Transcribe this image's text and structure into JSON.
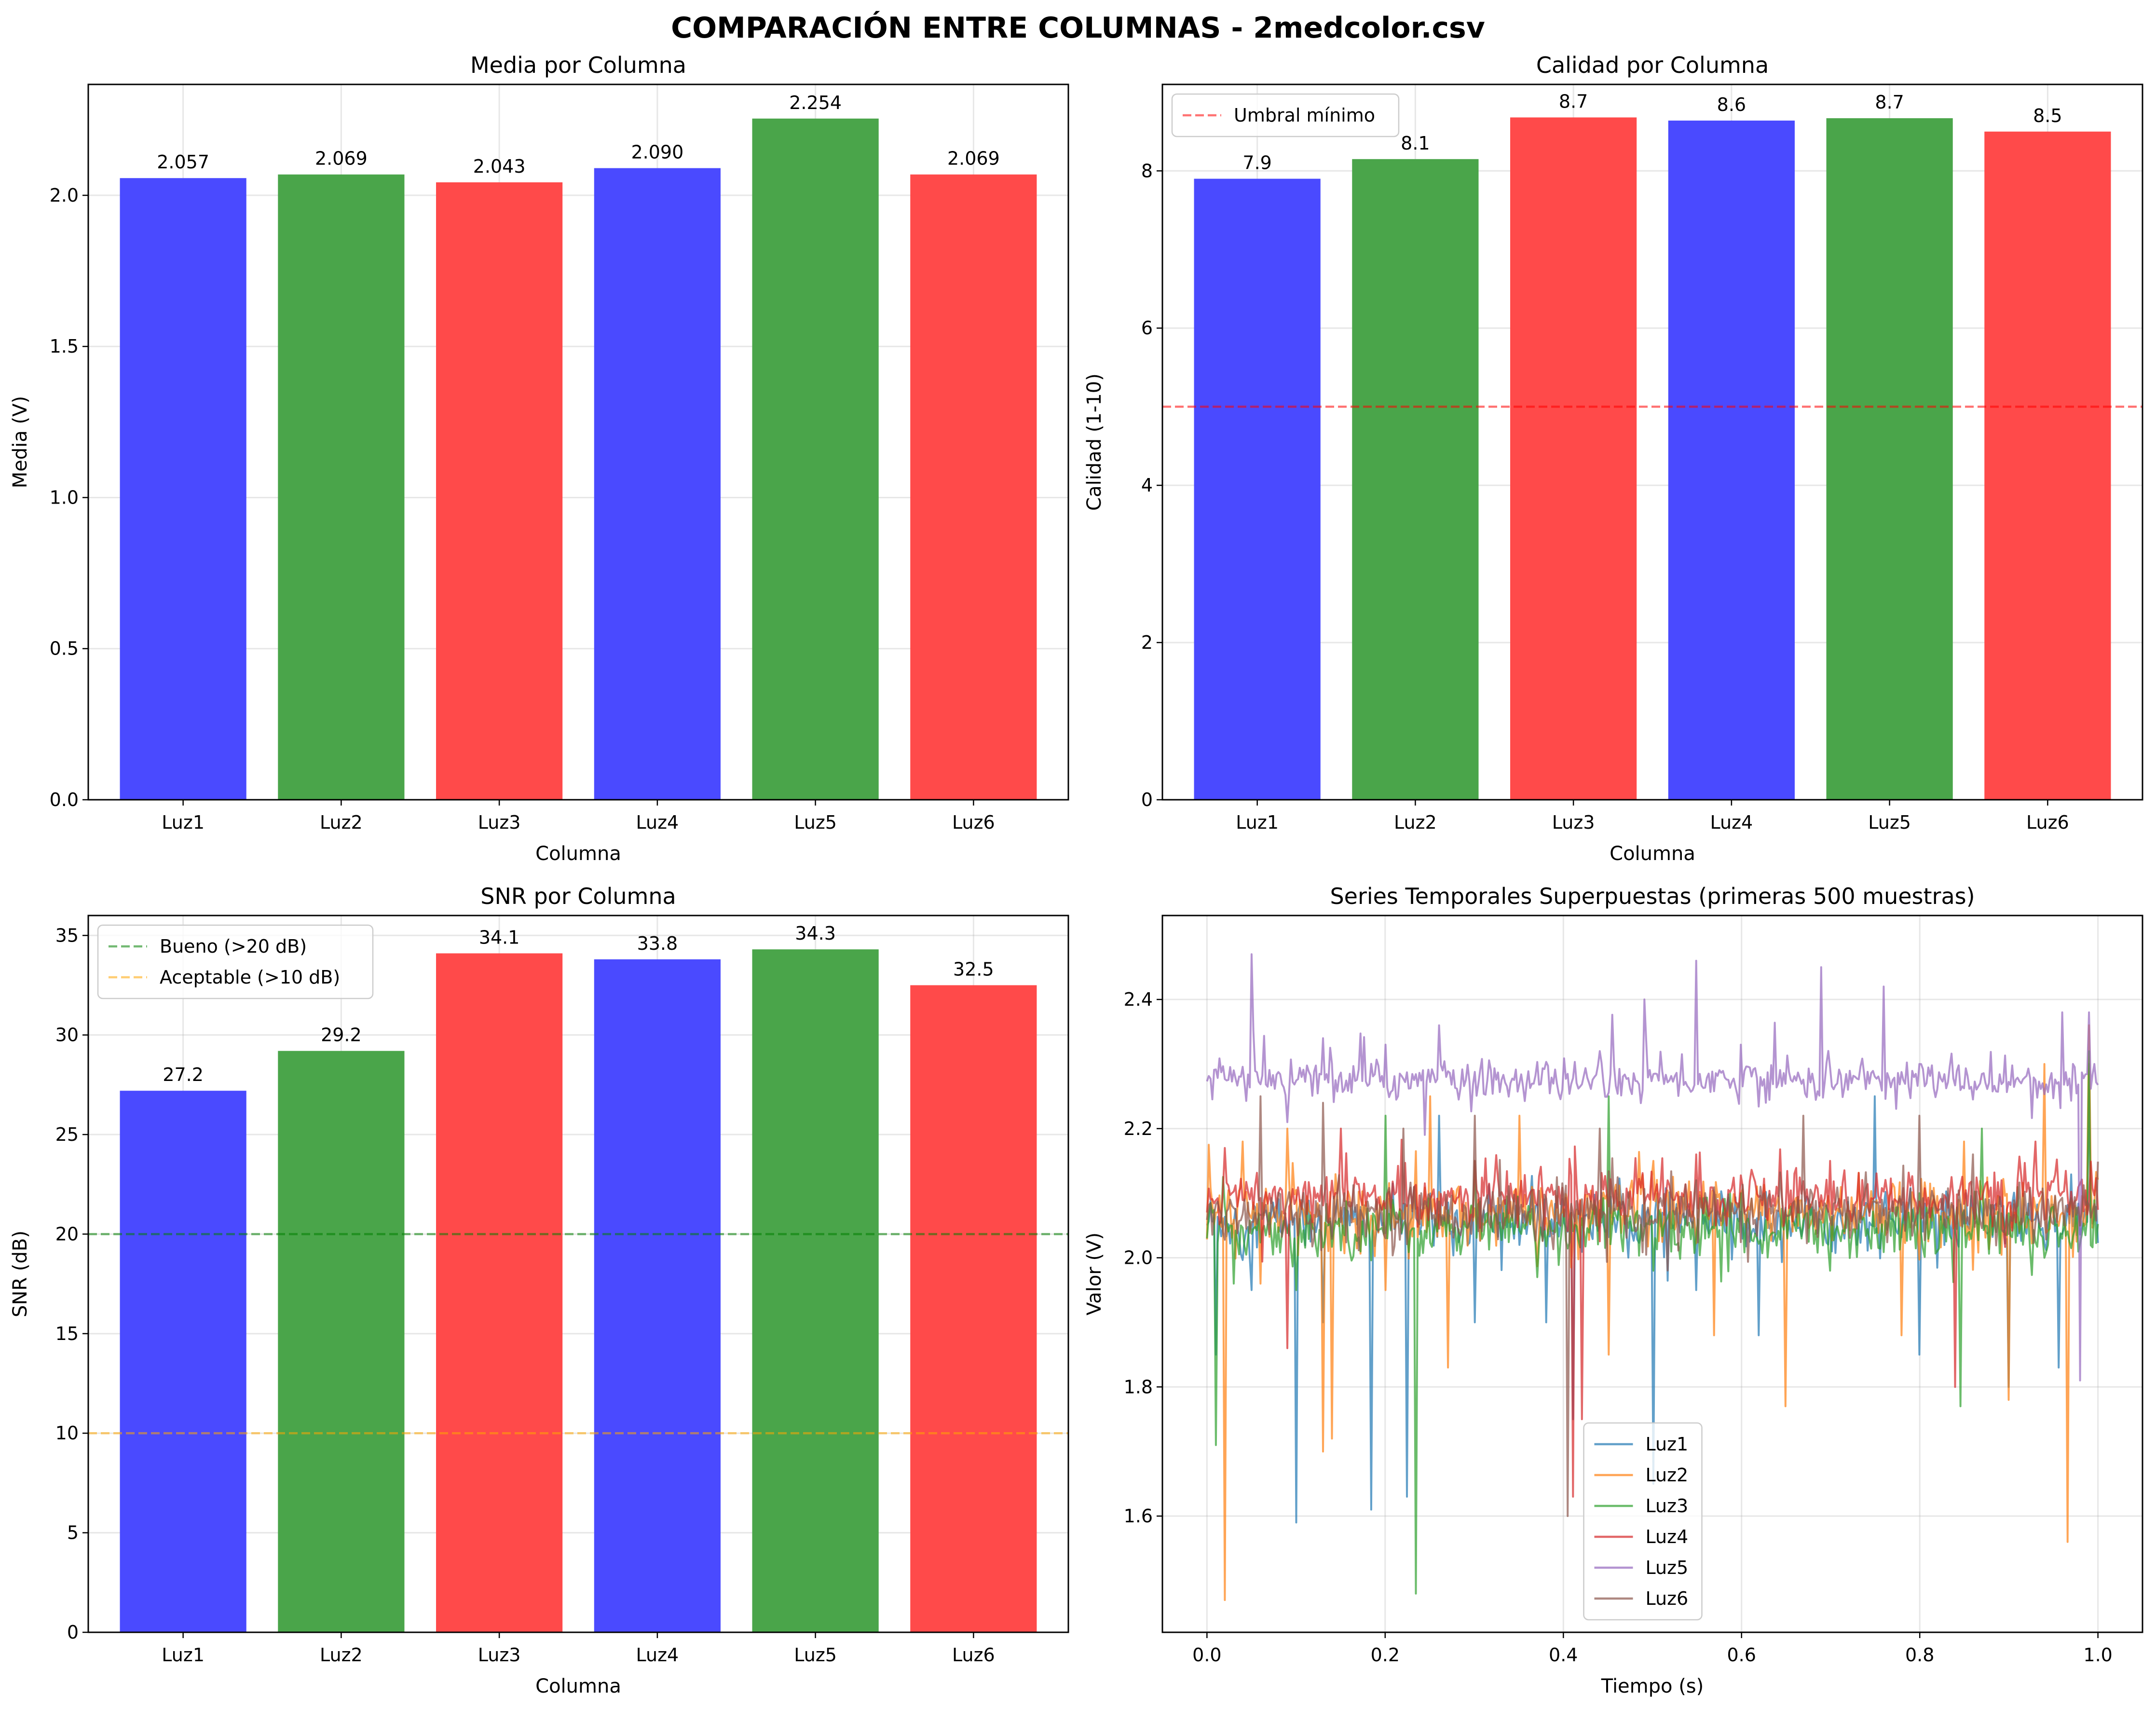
{
  "figure": {
    "suptitle": "COMPARACIÓN ENTRE COLUMNAS - 2medcolor.csv"
  },
  "chart_data": [
    {
      "type": "bar",
      "title": "Media por Columna",
      "xlabel": "Columna",
      "ylabel": "Media (V)",
      "categories": [
        "Luz1",
        "Luz2",
        "Luz3",
        "Luz4",
        "Luz5",
        "Luz6"
      ],
      "values": [
        2.057,
        2.069,
        2.043,
        2.09,
        2.254,
        2.069
      ],
      "value_labels": [
        "2.057",
        "2.069",
        "2.043",
        "2.090",
        "2.254",
        "2.069"
      ],
      "bar_colors": [
        "#4a4aff",
        "#4aa54a",
        "#ff4a4a",
        "#4a4aff",
        "#4aa54a",
        "#ff4a4a"
      ],
      "ylim": [
        0,
        2.367
      ],
      "yticks": [
        0.0,
        0.5,
        1.0,
        1.5,
        2.0
      ],
      "ytick_labels": [
        "0.0",
        "0.5",
        "1.0",
        "1.5",
        "2.0"
      ],
      "grid": true,
      "reference_lines": []
    },
    {
      "type": "bar",
      "title": "Calidad por Columna",
      "xlabel": "Columna",
      "ylabel": "Calidad (1-10)",
      "categories": [
        "Luz1",
        "Luz2",
        "Luz3",
        "Luz4",
        "Luz5",
        "Luz6"
      ],
      "values": [
        7.9,
        8.15,
        8.68,
        8.64,
        8.67,
        8.5
      ],
      "value_labels": [
        "7.9",
        "8.1",
        "8.7",
        "8.6",
        "8.7",
        "8.5"
      ],
      "bar_colors": [
        "#4a4aff",
        "#4aa54a",
        "#ff4a4a",
        "#4a4aff",
        "#4aa54a",
        "#ff4a4a"
      ],
      "ylim": [
        0,
        9.1
      ],
      "yticks": [
        0,
        2,
        4,
        6,
        8
      ],
      "ytick_labels": [
        "0",
        "2",
        "4",
        "6",
        "8"
      ],
      "grid": true,
      "reference_lines": [
        {
          "y": 5,
          "color": "#ff0000",
          "label": "Umbral mínimo"
        }
      ],
      "legend_position": "upper-left"
    },
    {
      "type": "bar",
      "title": "SNR por Columna",
      "xlabel": "Columna",
      "ylabel": "SNR (dB)",
      "categories": [
        "Luz1",
        "Luz2",
        "Luz3",
        "Luz4",
        "Luz5",
        "Luz6"
      ],
      "values": [
        27.2,
        29.2,
        34.1,
        33.8,
        34.3,
        32.5
      ],
      "value_labels": [
        "27.2",
        "29.2",
        "34.1",
        "33.8",
        "34.3",
        "32.5"
      ],
      "bar_colors": [
        "#4a4aff",
        "#4aa54a",
        "#ff4a4a",
        "#4a4aff",
        "#4aa54a",
        "#ff4a4a"
      ],
      "ylim": [
        0,
        36.0
      ],
      "yticks": [
        0,
        5,
        10,
        15,
        20,
        25,
        30,
        35
      ],
      "ytick_labels": [
        "0",
        "5",
        "10",
        "15",
        "20",
        "25",
        "30",
        "35"
      ],
      "grid": true,
      "reference_lines": [
        {
          "y": 20,
          "color": "#008000",
          "label": "Bueno (>20 dB)"
        },
        {
          "y": 10,
          "color": "#ffa500",
          "label": "Aceptable (>10 dB)"
        }
      ],
      "legend_position": "upper-left"
    },
    {
      "type": "line",
      "title": "Series Temporales Superpuestas (primeras 500 muestras)",
      "xlabel": "Tiempo (s)",
      "ylabel": "Valor (V)",
      "xlim": [
        -0.05,
        1.05
      ],
      "ylim": [
        1.42,
        2.53
      ],
      "xticks": [
        0.0,
        0.2,
        0.4,
        0.6,
        0.8,
        1.0
      ],
      "xtick_labels": [
        "0.0",
        "0.2",
        "0.4",
        "0.6",
        "0.8",
        "1.0"
      ],
      "yticks": [
        1.6,
        1.8,
        2.0,
        2.2,
        2.4
      ],
      "ytick_labels": [
        "1.6",
        "1.8",
        "2.0",
        "2.2",
        "2.4"
      ],
      "grid": true,
      "legend_position": "lower-center",
      "series": [
        {
          "name": "Luz1",
          "color": "#1f77b4",
          "baseline": 2.057,
          "noise": 0.022,
          "spikes": [
            [
              0.01,
              1.85
            ],
            [
              0.05,
              1.95
            ],
            [
              0.1,
              1.59
            ],
            [
              0.13,
              1.9
            ],
            [
              0.185,
              1.61
            ],
            [
              0.225,
              1.63
            ],
            [
              0.26,
              2.22
            ],
            [
              0.3,
              1.9
            ],
            [
              0.38,
              1.9
            ],
            [
              0.41,
              1.75
            ],
            [
              0.5,
              1.65
            ],
            [
              0.55,
              1.95
            ],
            [
              0.62,
              1.88
            ],
            [
              0.75,
              2.25
            ],
            [
              0.8,
              1.85
            ],
            [
              0.9,
              1.8
            ],
            [
              0.955,
              1.83
            ],
            [
              0.99,
              2.3
            ]
          ]
        },
        {
          "name": "Luz2",
          "color": "#ff7f0e",
          "baseline": 2.07,
          "noise": 0.025,
          "spikes": [
            [
              0.02,
              1.47
            ],
            [
              0.04,
              2.18
            ],
            [
              0.06,
              1.96
            ],
            [
              0.09,
              2.2
            ],
            [
              0.13,
              1.7
            ],
            [
              0.14,
              1.72
            ],
            [
              0.2,
              1.95
            ],
            [
              0.25,
              2.25
            ],
            [
              0.27,
              1.83
            ],
            [
              0.35,
              2.22
            ],
            [
              0.45,
              1.85
            ],
            [
              0.5,
              2.15
            ],
            [
              0.57,
              1.88
            ],
            [
              0.6,
              2.1
            ],
            [
              0.65,
              1.77
            ],
            [
              0.78,
              1.88
            ],
            [
              0.85,
              2.18
            ],
            [
              0.9,
              1.78
            ],
            [
              0.94,
              2.3
            ],
            [
              0.965,
              1.56
            ],
            [
              0.99,
              2.36
            ]
          ]
        },
        {
          "name": "Luz3",
          "color": "#2ca02c",
          "baseline": 2.045,
          "noise": 0.022,
          "spikes": [
            [
              0.01,
              1.71
            ],
            [
              0.03,
              1.96
            ],
            [
              0.1,
              1.95
            ],
            [
              0.2,
              2.22
            ],
            [
              0.235,
              1.48
            ],
            [
              0.3,
              2.15
            ],
            [
              0.37,
              1.97
            ],
            [
              0.45,
              2.25
            ],
            [
              0.5,
              1.98
            ],
            [
              0.6,
              2.1
            ],
            [
              0.7,
              1.98
            ],
            [
              0.8,
              2.1
            ],
            [
              0.845,
              1.77
            ],
            [
              0.87,
              2.2
            ],
            [
              0.94,
              2.0
            ],
            [
              0.99,
              2.32
            ]
          ]
        },
        {
          "name": "Luz4",
          "color": "#d62728",
          "baseline": 2.095,
          "noise": 0.02,
          "spikes": [
            [
              0.02,
              2.17
            ],
            [
              0.09,
              1.86
            ],
            [
              0.15,
              2.2
            ],
            [
              0.3,
              2.15
            ],
            [
              0.41,
              1.63
            ],
            [
              0.42,
              1.75
            ],
            [
              0.55,
              2.16
            ],
            [
              0.7,
              2.15
            ],
            [
              0.84,
              1.8
            ],
            [
              0.93,
              2.18
            ]
          ]
        },
        {
          "name": "Luz5",
          "color": "#9467bd",
          "baseline": 2.275,
          "noise": 0.016,
          "spikes": [
            [
              0.05,
              2.47
            ],
            [
              0.09,
              2.21
            ],
            [
              0.13,
              2.34
            ],
            [
              0.2,
              2.33
            ],
            [
              0.26,
              2.36
            ],
            [
              0.35,
              2.27
            ],
            [
              0.44,
              2.32
            ],
            [
              0.49,
              2.4
            ],
            [
              0.55,
              2.46
            ],
            [
              0.6,
              2.33
            ],
            [
              0.69,
              2.45
            ],
            [
              0.76,
              2.42
            ],
            [
              0.8,
              2.3
            ],
            [
              0.96,
              2.38
            ],
            [
              0.98,
              1.81
            ],
            [
              0.99,
              2.38
            ]
          ]
        },
        {
          "name": "Luz6",
          "color": "#8c564b",
          "baseline": 2.07,
          "noise": 0.022,
          "spikes": [
            [
              0.06,
              2.25
            ],
            [
              0.13,
              2.24
            ],
            [
              0.22,
              2.2
            ],
            [
              0.3,
              2.22
            ],
            [
              0.405,
              1.6
            ],
            [
              0.44,
              2.2
            ],
            [
              0.55,
              2.12
            ],
            [
              0.67,
              2.22
            ],
            [
              0.8,
              2.22
            ],
            [
              0.86,
              2.16
            ],
            [
              0.98,
              2.05
            ]
          ]
        }
      ]
    }
  ]
}
